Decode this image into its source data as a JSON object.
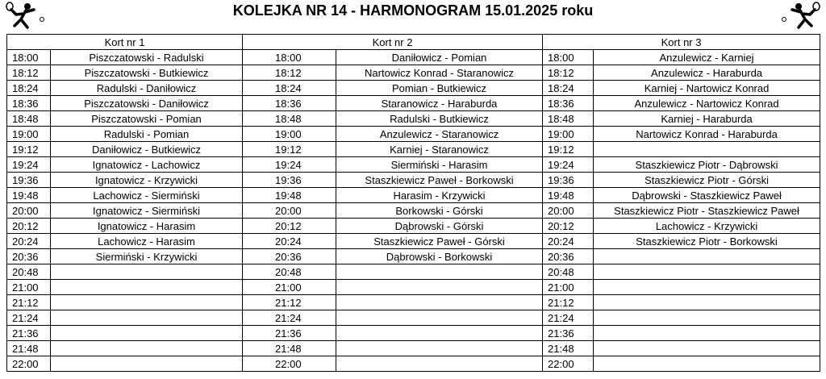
{
  "header": {
    "title": "KOLEJKA NR 14 - HARMONOGRAM 15.01.2025 roku"
  },
  "table": {
    "headers": [
      "Kort nr 1",
      "Kort nr 2",
      "Kort nr 3"
    ],
    "rows": [
      [
        "18:00",
        "Piszczatowski - Radulski",
        "18:00",
        "Daniłowicz - Pomian",
        "18:00",
        "Anzulewicz - Karniej"
      ],
      [
        "18:12",
        "Piszczatowski - Butkiewicz",
        "18:12",
        "Nartowicz Konrad - Staranowicz",
        "18:12",
        "Anzulewicz - Haraburda"
      ],
      [
        "18:24",
        "Radulski - Daniłowicz",
        "18:24",
        "Pomian - Butkiewicz",
        "18:24",
        "Karniej - Nartowicz Konrad"
      ],
      [
        "18:36",
        "Piszczatowski - Daniłowicz",
        "18:36",
        "Staranowicz - Haraburda",
        "18:36",
        "Anzulewicz - Nartowicz Konrad"
      ],
      [
        "18:48",
        "Piszczatowski - Pomian",
        "18:48",
        "Radulski - Butkiewicz",
        "18:48",
        "Karniej - Haraburda"
      ],
      [
        "19:00",
        "Radulski - Pomian",
        "19:00",
        "Anzulewicz - Staranowicz",
        "19:00",
        "Nartowicz Konrad - Haraburda"
      ],
      [
        "19:12",
        "Daniłowicz - Butkiewicz",
        "19:12",
        "Karniej - Staranowicz",
        "19:12",
        null
      ],
      [
        "19:24",
        "Ignatowicz - Lachowicz",
        "19:24",
        "Siermiński - Harasim",
        "19:24",
        "Staszkiewicz Piotr - Dąbrowski"
      ],
      [
        "19:36",
        "Ignatowicz - Krzywicki",
        "19:36",
        "Staszkiewicz Paweł - Borkowski",
        "19:36",
        "Staszkiewicz Piotr - Górski"
      ],
      [
        "19:48",
        "Lachowicz - Siermiński",
        "19:48",
        "Harasim - Krzywicki",
        "19:48",
        "Dąbrowski - Staszkiewicz Paweł"
      ],
      [
        "20:00",
        "Ignatowicz - Siermiński",
        "20:00",
        "Borkowski - Górski",
        "20:00",
        "Staszkiewicz Piotr - Staszkiewicz Paweł"
      ],
      [
        "20:12",
        "Ignatowicz - Harasim",
        "20:12",
        "Dąbrowski - Górski",
        "20:12",
        "Lachowicz - Krzywicki"
      ],
      [
        "20:24",
        "Lachowicz - Harasim",
        "20:24",
        "Staszkiewicz Paweł - Górski",
        "20:24",
        "Staszkiewicz Piotr - Borkowski"
      ],
      [
        "20:36",
        "Siermiński - Krzywicki",
        "20:36",
        "Dąbrowski - Borkowski",
        "20:36",
        null
      ],
      [
        "20:48",
        null,
        "20:48",
        null,
        "20:48",
        null
      ],
      [
        "21:00",
        null,
        "21:00",
        null,
        "21:00",
        null
      ],
      [
        "21:12",
        null,
        "21:12",
        null,
        "21:12",
        null
      ],
      [
        "21:24",
        null,
        "21:24",
        null,
        "21:24",
        null
      ],
      [
        "21:36",
        null,
        "21:36",
        null,
        "21:36",
        null
      ],
      [
        "21:48",
        null,
        "21:48",
        null,
        "21:48",
        null
      ],
      [
        "22:00",
        null,
        "22:00",
        null,
        "22:00",
        null
      ]
    ]
  }
}
